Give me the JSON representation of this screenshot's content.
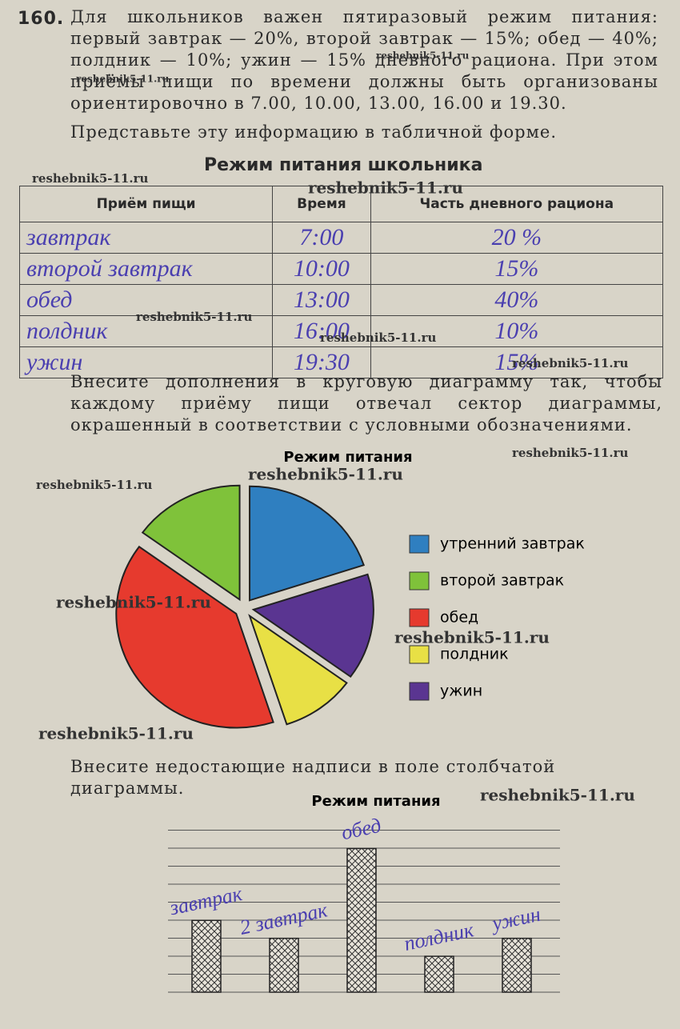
{
  "problem": {
    "number": "160.",
    "text": "Для школьников важен пятиразовый режим питания: первый завтрак — 20%, второй завтрак — 15%; обед — 40%; полдник — 10%; ужин — 15% дневного рациона. При этом приёмы пищи по времени должны быть организованы ориентировочно в 7.00, 10.00, 13.00, 16.00 и 19.30.",
    "task": "Представьте эту информацию в табличной форме."
  },
  "table": {
    "title": "Режим питания школьника",
    "header": [
      "Приём пищи",
      "Время",
      "Часть дневного рациона"
    ],
    "rows": [
      [
        "завтрак",
        "7:00",
        "20 %"
      ],
      [
        "второй завтрак",
        "10:00",
        "15%"
      ],
      [
        "обед",
        "13:00",
        "40%"
      ],
      [
        "полдник",
        "16:00",
        "10%"
      ],
      [
        "ужин",
        "19:30",
        "15%"
      ]
    ]
  },
  "pie_task": "Внесите дополнения в круговую диаграмму так, чтобы каждому приёму пищи отвечал сектор диаграммы, окрашенный в соответствии с условными обозначениями.",
  "bar_task": "Внесите недостающие надписи в поле столбчатой диаграммы.",
  "chart_data": [
    {
      "type": "pie",
      "title": "Режим питания",
      "categories": [
        "утренний завтрак",
        "второй завтрак",
        "обед",
        "полдник",
        "ужин"
      ],
      "values": [
        20,
        15,
        40,
        10,
        15
      ],
      "colors": [
        "#2f7fc0",
        "#7fc23a",
        "#e63a2e",
        "#e8e045",
        "#5a3591"
      ]
    },
    {
      "type": "bar",
      "title": "Режим питания",
      "categories": [
        "завтрак",
        "2 завтрак",
        "обед",
        "полдник",
        "ужин"
      ],
      "values": [
        20,
        15,
        40,
        10,
        15
      ],
      "ylim": [
        0,
        45
      ]
    }
  ],
  "watermarks": [
    "reshebnik5-11.ru",
    "reshebnik5-11.ru",
    "reshebnik5-11.ru",
    "reshebnik5-11.ru",
    "reshebnik5-11.ru",
    "reshebnik5-11.ru",
    "reshebnik5-11.ru",
    "reshebnik5-11.ru",
    "reshebnik5-11.ru",
    "reshebnik5-11.ru",
    "reshebnik5-11.ru",
    "reshebnik5-11.ru",
    "reshebnik5-11.ru",
    "reshebnik5-11.ru"
  ]
}
